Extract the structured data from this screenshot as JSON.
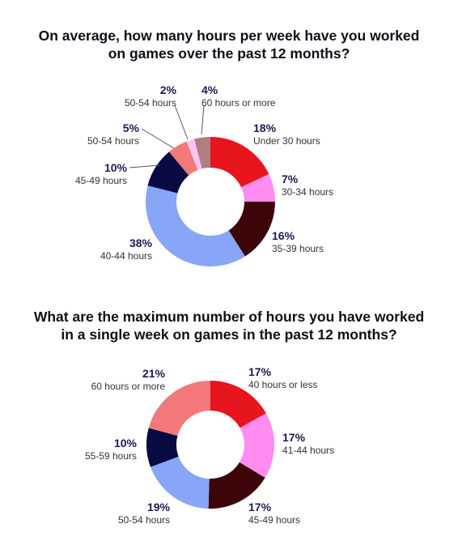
{
  "chart_data": [
    {
      "type": "pie",
      "title_lines": [
        "On average, how many hours per week have you worked",
        "on games over the past 12 months?"
      ],
      "slices": [
        {
          "label": "Under 30 hours",
          "value": 18,
          "pct_label": "18%",
          "color": "#e8141e"
        },
        {
          "label": "30-34 hours",
          "value": 7,
          "pct_label": "7%",
          "color": "#ff8cf0"
        },
        {
          "label": "35-39 hours",
          "value": 16,
          "pct_label": "16%",
          "color": "#3c0508"
        },
        {
          "label": "40-44 hours",
          "value": 38,
          "pct_label": "38%",
          "color": "#87a6f7"
        },
        {
          "label": "45-49 hours",
          "value": 10,
          "pct_label": "10%",
          "color": "#0a0a42"
        },
        {
          "label": "50-54 hours",
          "value": 5,
          "pct_label": "5%",
          "color": "#f2787a"
        },
        {
          "label": "50-54 hours",
          "value": 2,
          "pct_label": "2%",
          "color": "#ffc4f5"
        },
        {
          "label": "60 hours or more",
          "value": 4,
          "pct_label": "4%",
          "color": "#b07e80"
        }
      ]
    },
    {
      "type": "pie",
      "title_lines": [
        "What are the maximum number of hours you have worked",
        "in a single week on games in the past 12 months?"
      ],
      "slices": [
        {
          "label": "40 hours or less",
          "value": 17,
          "pct_label": "17%",
          "color": "#e8141e"
        },
        {
          "label": "41-44 hours",
          "value": 17,
          "pct_label": "17%",
          "color": "#ff8cf0"
        },
        {
          "label": "45-49 hours",
          "value": 17,
          "pct_label": "17%",
          "color": "#3c0508"
        },
        {
          "label": "50-54 hours",
          "value": 19,
          "pct_label": "19%",
          "color": "#87a6f7"
        },
        {
          "label": "55-59 hours",
          "value": 10,
          "pct_label": "10%",
          "color": "#0a0a42"
        },
        {
          "label": "60 hours or more",
          "value": 21,
          "pct_label": "21%",
          "color": "#f2787a"
        }
      ]
    }
  ]
}
